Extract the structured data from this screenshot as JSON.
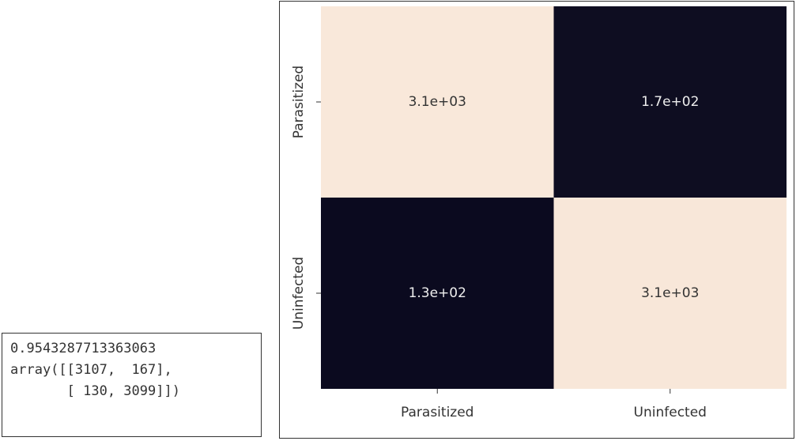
{
  "console": {
    "lines": [
      "0.9543287713363063",
      "array([[3107,  167],",
      "       [ 130, 3099]])"
    ]
  },
  "chart_data": {
    "type": "heatmap",
    "xcategories": [
      "Parasitized",
      "Uninfected"
    ],
    "ycategories": [
      "Parasitized",
      "Uninfected"
    ],
    "values": [
      [
        3107,
        167
      ],
      [
        130,
        3099
      ]
    ],
    "value_labels": [
      [
        "3.1e+03",
        "1.7e+02"
      ],
      [
        "1.3e+02",
        "3.1e+03"
      ]
    ],
    "colors": [
      "#0b0a1f",
      "#f9e8da"
    ]
  }
}
